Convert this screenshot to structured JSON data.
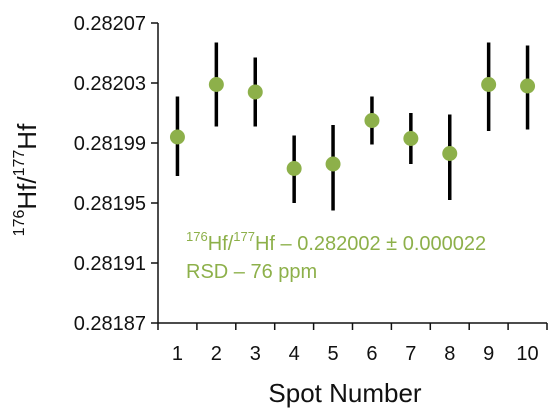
{
  "chart_data": {
    "type": "scatter",
    "xlabel": "Spot Number",
    "ylabel": {
      "sup1": "176",
      "part1": "Hf/",
      "sup2": "177",
      "part2": "Hf"
    },
    "x": [
      1,
      2,
      3,
      4,
      5,
      6,
      7,
      8,
      9,
      10
    ],
    "xticks": [
      "1",
      "2",
      "3",
      "4",
      "5",
      "6",
      "7",
      "8",
      "9",
      "10"
    ],
    "ylim": [
      0.28187,
      0.28207
    ],
    "yticks": [
      "0.28187",
      "0.28191",
      "0.28195",
      "0.28199",
      "0.28203",
      "0.28207"
    ],
    "series": [
      {
        "values": [
          0.281994,
          0.282029,
          0.282024,
          0.281973,
          0.281976,
          0.282005,
          0.281993,
          0.281983,
          0.282029,
          0.282028
        ],
        "error_low": [
          0.281968,
          0.282001,
          0.282001,
          0.28195,
          0.281945,
          0.281989,
          0.281976,
          0.281952,
          0.281998,
          0.281999
        ],
        "error_high": [
          0.282021,
          0.282057,
          0.282047,
          0.281995,
          0.282002,
          0.282021,
          0.28201,
          0.282009,
          0.282057,
          0.282055
        ],
        "color": "#8db04a"
      }
    ],
    "annotations": {
      "line1": {
        "sup1": "176",
        "part1": "Hf/",
        "sup2": "177",
        "part2": "Hf – 0.282002 ± 0.000022"
      },
      "line2": "RSD – 76 ppm",
      "color": "#8db04a"
    },
    "grid": false,
    "legend": "none"
  }
}
